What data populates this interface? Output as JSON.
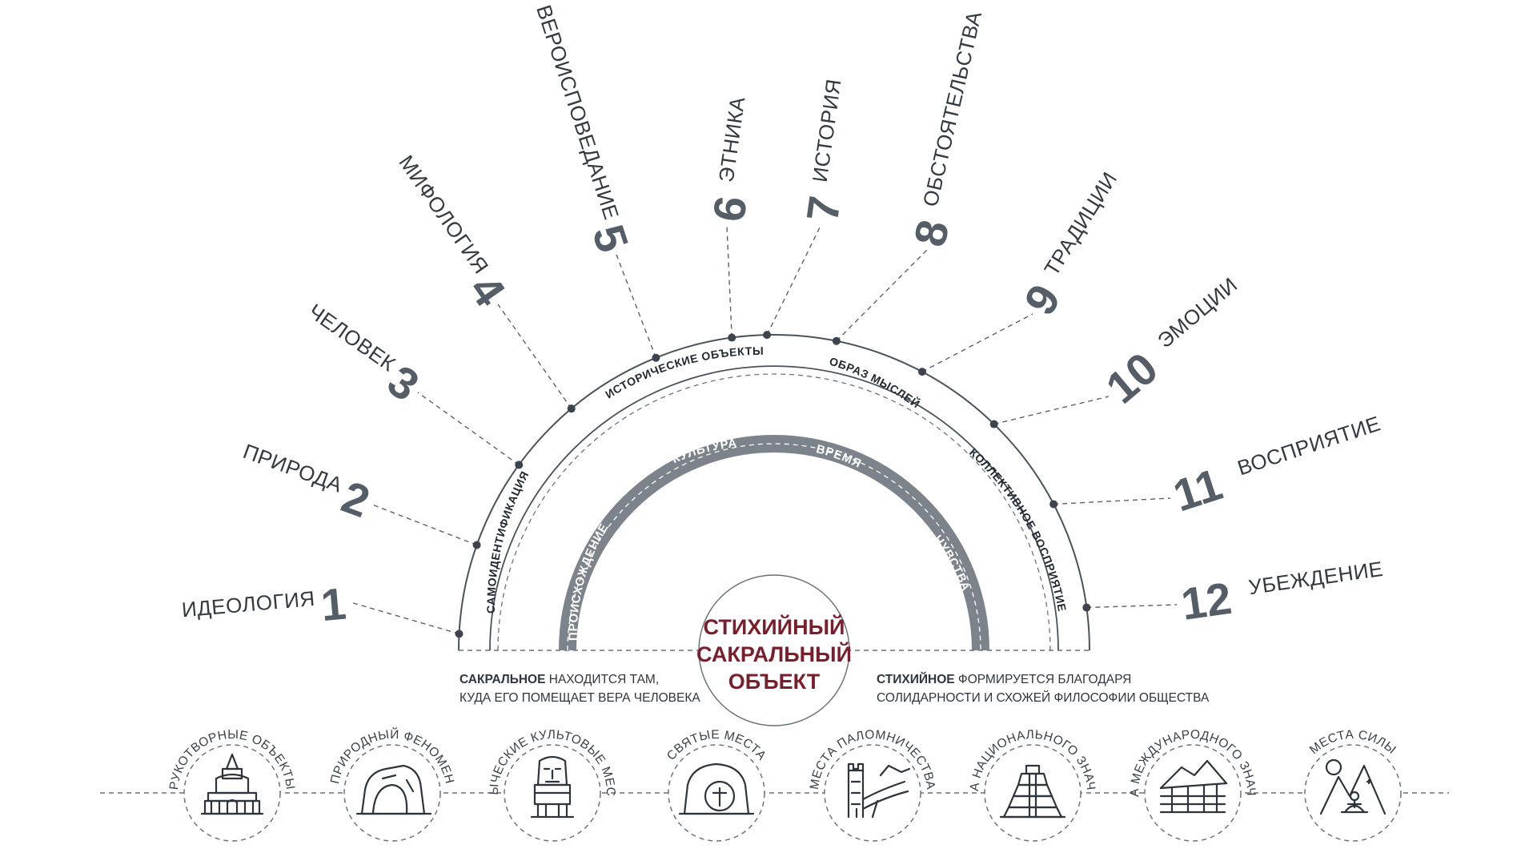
{
  "center_title": {
    "line1": "СТИХИЙНЫЙ",
    "line2": "САКРАЛЬНЫЙ",
    "line3": "ОБЪЕКТ"
  },
  "factors": [
    {
      "num": "1",
      "label": "ИДЕОЛОГИЯ"
    },
    {
      "num": "2",
      "label": "ПРИРОДА"
    },
    {
      "num": "3",
      "label": "ЧЕЛОВЕК"
    },
    {
      "num": "4",
      "label": "МИФОЛОГИЯ"
    },
    {
      "num": "5",
      "label": "ВЕРОИСПОВЕДАНИЕ"
    },
    {
      "num": "6",
      "label": "ЭТНИКА"
    },
    {
      "num": "7",
      "label": "ИСТОРИЯ"
    },
    {
      "num": "8",
      "label": "ОБСТОЯТЕЛЬСТВА"
    },
    {
      "num": "9",
      "label": "ТРАДИЦИИ"
    },
    {
      "num": "10",
      "label": "ЭМОЦИИ"
    },
    {
      "num": "11",
      "label": "ВОСПРИЯТИЕ"
    },
    {
      "num": "12",
      "label": "УБЕЖДЕНИЕ"
    }
  ],
  "middle_arc_labels": {
    "self_identification": "САМОИДЕНТИФИКАЦИЯ",
    "historical_objects": "ИСТОРИЧЕСКИЕ ОБЪЕКТЫ",
    "way_of_thinking": "ОБРАЗ МЫСЛЕЙ",
    "collective_perception": "КОЛЛЕКТИВНОЕ ВОСПРИЯТИЕ"
  },
  "inner_arc_labels": {
    "origin": "ПРОИСХОЖДЕНИЕ",
    "culture": "КУЛЬТУРА",
    "time": "ВРЕМЯ",
    "feelings": "ЧУВСТВА"
  },
  "notes": {
    "left_bold": "САКРАЛЬНОЕ",
    "left_rest": " НАХОДИТСЯ ТАМ,",
    "left_line2": "КУДА ЕГО ПОМЕЩАЕТ ВЕРА ЧЕЛОВЕКА",
    "right_bold": "СТИХИЙНОЕ",
    "right_rest": " ФОРМИРУЕТСЯ БЛАГОДАРЯ",
    "right_line2": "СОЛИДАРНОСТИ И СХОЖЕЙ ФИЛОСОФИИ ОБЩЕСТВА"
  },
  "categories": [
    {
      "label": "РУКОТВОРНЫЕ ОБЪЕКТЫ",
      "icon": "stupa-icon"
    },
    {
      "label": "ПРИРОДНЫЙ ФЕНОМЕН",
      "icon": "cave-arch-icon"
    },
    {
      "label": "ЯЗЫЧЕСКИЕ КУЛЬТОВЫЕ МЕСТА",
      "icon": "moai-head-icon"
    },
    {
      "label": "СВЯТЫЕ МЕСТА",
      "icon": "tomb-cross-icon"
    },
    {
      "label": "МЕСТА ПАЛОМНИЧЕСТВА",
      "icon": "great-wall-icon"
    },
    {
      "label": "МЕСТА НАЦИОНАЛЬНОГО ЗНАЧЕНИЯ",
      "icon": "pyramid-icon"
    },
    {
      "label": "МЕСТА МЕЖДУНАРОДНОГО ЗНАЧЕНИЯ",
      "icon": "machu-picchu-icon"
    },
    {
      "label": "МЕСТА СИЛЫ",
      "icon": "meditation-mountains-icon"
    }
  ],
  "colors": {
    "line": "#4a525c",
    "inner_band": "#7d838a",
    "accent": "#7a1e2c",
    "text": "#333a42"
  }
}
